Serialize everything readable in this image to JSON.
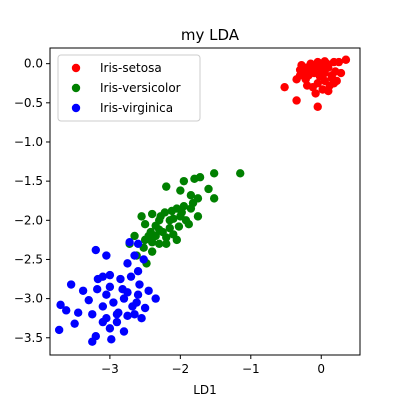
{
  "chart_data": {
    "type": "scatter",
    "title": "my LDA",
    "xlabel": "LD1",
    "ylabel": "",
    "xlim": [
      -3.85,
      0.55
    ],
    "ylim": [
      -3.72,
      0.2
    ],
    "xticks": [
      -3,
      -2,
      -1,
      0
    ],
    "yticks": [
      0.0,
      -0.5,
      -1.0,
      -1.5,
      -2.0,
      -2.5,
      -3.0,
      -3.5
    ],
    "xtick_labels": [
      "−3",
      "−2",
      "−1",
      "0"
    ],
    "ytick_labels": [
      "0.0",
      "−0.5",
      "−1.0",
      "−1.5",
      "−2.0",
      "−2.5",
      "−3.0",
      "−3.5"
    ],
    "grid": false,
    "legend": "top-left",
    "series": [
      {
        "name": "Iris-setosa",
        "color": "#ff0000",
        "points": [
          [
            0.35,
            0.05
          ],
          [
            0.18,
            0.02
          ],
          [
            0.05,
            0.03
          ],
          [
            -0.05,
            0.02
          ],
          [
            -0.15,
            0.0
          ],
          [
            -0.2,
            -0.05
          ],
          [
            -0.25,
            -0.1
          ],
          [
            -0.3,
            -0.15
          ],
          [
            -0.22,
            -0.2
          ],
          [
            -0.1,
            -0.12
          ],
          [
            0.0,
            -0.08
          ],
          [
            0.1,
            -0.05
          ],
          [
            0.2,
            -0.1
          ],
          [
            0.28,
            -0.12
          ],
          [
            0.15,
            -0.18
          ],
          [
            0.05,
            -0.22
          ],
          [
            -0.05,
            -0.25
          ],
          [
            -0.12,
            -0.3
          ],
          [
            -0.08,
            -0.38
          ],
          [
            0.02,
            -0.33
          ],
          [
            0.12,
            -0.28
          ],
          [
            0.22,
            -0.22
          ],
          [
            -0.35,
            -0.2
          ],
          [
            -0.3,
            -0.08
          ],
          [
            -0.18,
            -0.15
          ],
          [
            -0.02,
            -0.16
          ],
          [
            0.08,
            0.0
          ],
          [
            0.25,
            0.02
          ],
          [
            -0.1,
            -0.05
          ],
          [
            0.0,
            -0.02
          ],
          [
            -0.52,
            -0.3
          ],
          [
            -0.35,
            -0.47
          ],
          [
            -0.05,
            -0.55
          ],
          [
            0.18,
            -0.25
          ],
          [
            -0.2,
            -0.28
          ],
          [
            0.05,
            -0.12
          ],
          [
            -0.28,
            -0.02
          ],
          [
            0.15,
            -0.15
          ],
          [
            -0.15,
            -0.1
          ],
          [
            0.1,
            -0.35
          ]
        ]
      },
      {
        "name": "Iris-versicolor",
        "color": "#008000",
        "points": [
          [
            -1.15,
            -1.4
          ],
          [
            -1.52,
            -1.4
          ],
          [
            -1.72,
            -1.45
          ],
          [
            -1.8,
            -1.47
          ],
          [
            -1.95,
            -1.5
          ],
          [
            -2.2,
            -1.57
          ],
          [
            -2.0,
            -1.62
          ],
          [
            -1.85,
            -1.68
          ],
          [
            -1.75,
            -1.72
          ],
          [
            -1.52,
            -1.72
          ],
          [
            -1.82,
            -1.78
          ],
          [
            -1.95,
            -1.82
          ],
          [
            -2.05,
            -1.85
          ],
          [
            -2.12,
            -1.88
          ],
          [
            -2.22,
            -1.9
          ],
          [
            -2.4,
            -1.92
          ],
          [
            -2.55,
            -1.95
          ],
          [
            -2.28,
            -1.95
          ],
          [
            -2.1,
            -1.98
          ],
          [
            -1.92,
            -2.0
          ],
          [
            -1.75,
            -1.95
          ],
          [
            -1.88,
            -2.05
          ],
          [
            -2.02,
            -2.08
          ],
          [
            -2.15,
            -2.1
          ],
          [
            -2.3,
            -2.12
          ],
          [
            -2.42,
            -2.15
          ],
          [
            -2.35,
            -2.2
          ],
          [
            -2.2,
            -2.22
          ],
          [
            -2.05,
            -2.25
          ],
          [
            -2.3,
            -2.3
          ],
          [
            -2.4,
            -2.28
          ],
          [
            -2.5,
            -2.25
          ],
          [
            -2.65,
            -2.2
          ],
          [
            -2.72,
            -2.3
          ],
          [
            -2.52,
            -2.35
          ],
          [
            -2.4,
            -2.4
          ],
          [
            -2.2,
            -2.3
          ],
          [
            -2.1,
            -2.18
          ],
          [
            -1.98,
            -1.9
          ],
          [
            -1.85,
            -1.85
          ],
          [
            -2.35,
            -2.07
          ],
          [
            -2.5,
            -2.05
          ],
          [
            -2.62,
            -2.45
          ],
          [
            -2.48,
            -2.55
          ],
          [
            -2.25,
            -2.15
          ],
          [
            -2.0,
            -1.95
          ],
          [
            -1.6,
            -1.6
          ],
          [
            -2.15,
            -2.0
          ],
          [
            -2.3,
            -2.0
          ],
          [
            -2.45,
            -2.2
          ]
        ]
      },
      {
        "name": "Iris-virginica",
        "color": "#0000ff",
        "points": [
          [
            -2.6,
            -2.3
          ],
          [
            -2.72,
            -2.28
          ],
          [
            -3.2,
            -2.38
          ],
          [
            -3.05,
            -2.45
          ],
          [
            -2.65,
            -2.45
          ],
          [
            -2.52,
            -2.5
          ],
          [
            -2.75,
            -2.55
          ],
          [
            -2.6,
            -2.65
          ],
          [
            -2.7,
            -2.72
          ],
          [
            -3.0,
            -2.7
          ],
          [
            -3.1,
            -2.72
          ],
          [
            -3.17,
            -2.75
          ],
          [
            -3.55,
            -2.82
          ],
          [
            -2.85,
            -2.75
          ],
          [
            -2.58,
            -2.82
          ],
          [
            -2.82,
            -2.88
          ],
          [
            -3.0,
            -2.85
          ],
          [
            -3.18,
            -2.88
          ],
          [
            -2.45,
            -2.9
          ],
          [
            -2.6,
            -2.95
          ],
          [
            -2.75,
            -2.92
          ],
          [
            -3.38,
            -2.9
          ],
          [
            -3.05,
            -2.95
          ],
          [
            -2.8,
            -3.0
          ],
          [
            -2.95,
            -3.05
          ],
          [
            -3.3,
            -3.02
          ],
          [
            -2.35,
            -3.0
          ],
          [
            -2.68,
            -3.1
          ],
          [
            -3.45,
            -3.18
          ],
          [
            -3.62,
            -3.15
          ],
          [
            -3.7,
            -3.08
          ],
          [
            -2.5,
            -3.12
          ],
          [
            -2.88,
            -3.18
          ],
          [
            -3.25,
            -3.2
          ],
          [
            -3.05,
            -3.25
          ],
          [
            -2.9,
            -3.3
          ],
          [
            -2.75,
            -3.22
          ],
          [
            -3.5,
            -3.32
          ],
          [
            -2.55,
            -3.25
          ],
          [
            -3.0,
            -3.38
          ],
          [
            -2.8,
            -3.42
          ],
          [
            -3.2,
            -3.48
          ],
          [
            -3.72,
            -3.4
          ],
          [
            -3.25,
            -3.55
          ],
          [
            -2.98,
            -3.52
          ],
          [
            -2.9,
            -3.2
          ],
          [
            -3.1,
            -3.3
          ],
          [
            -2.62,
            -3.05
          ],
          [
            -2.65,
            -3.2
          ],
          [
            -3.1,
            -3.1
          ]
        ]
      }
    ]
  }
}
